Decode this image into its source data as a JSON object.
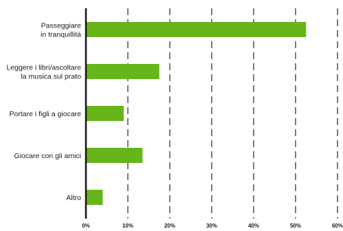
{
  "chart_data": {
    "type": "bar",
    "orientation": "horizontal",
    "title": "",
    "xlabel": "",
    "ylabel": "",
    "categories": [
      [
        "Passeggiare",
        "in tranquillità"
      ],
      [
        "Leggere i libri/ascoltare",
        "la musica sul prato"
      ],
      [
        "Portare i figli a giocare"
      ],
      [
        "Giocare con gli amici"
      ],
      [
        "Altro"
      ]
    ],
    "values": [
      52.5,
      17.5,
      9,
      13.5,
      4
    ],
    "xlim": [
      0,
      60
    ],
    "xticks": [
      "0%",
      "10%",
      "20%",
      "30%",
      "40%",
      "50%",
      "60%"
    ],
    "grid": "vertical dashed",
    "legend": "none",
    "colors": {
      "bar": "#66b51b",
      "axis": "#111111",
      "grid": "#222222"
    }
  }
}
